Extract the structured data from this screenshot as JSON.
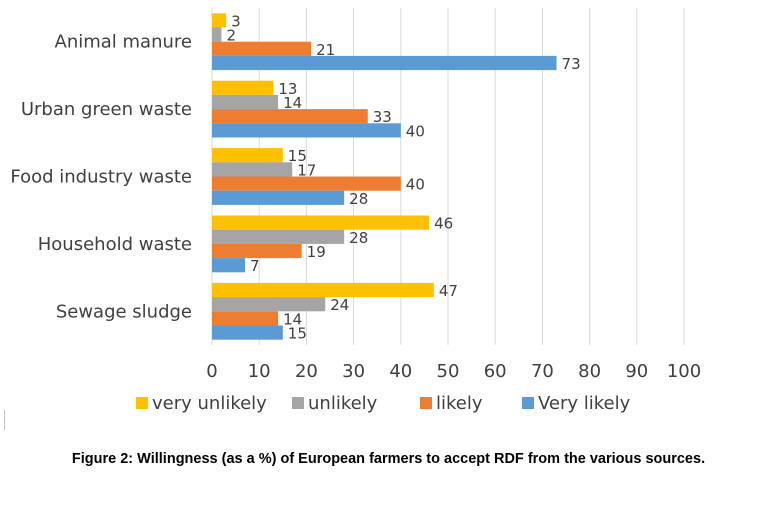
{
  "caption": "Figure 2: Willingness (as a %) of European farmers to accept RDF from the various sources.",
  "chart_data": {
    "type": "bar",
    "orientation": "horizontal",
    "categories": [
      "Animal manure",
      "Urban green waste",
      "Food industry waste",
      "Household waste",
      "Sewage sludge"
    ],
    "series": [
      {
        "name": "very unlikely",
        "color": "#FFC000",
        "values": [
          3,
          13,
          15,
          46,
          47
        ]
      },
      {
        "name": "unlikely",
        "color": "#A5A5A5",
        "values": [
          2,
          14,
          17,
          28,
          24
        ]
      },
      {
        "name": "likely",
        "color": "#ED7D31",
        "values": [
          21,
          33,
          40,
          19,
          14
        ]
      },
      {
        "name": "Very likely",
        "color": "#5B9BD5",
        "values": [
          73,
          40,
          28,
          7,
          15
        ]
      }
    ],
    "xlim": [
      0,
      100
    ],
    "xticks": [
      0,
      10,
      20,
      30,
      40,
      50,
      60,
      70,
      80,
      90,
      100
    ],
    "grid": true,
    "data_labels": true,
    "legend_position": "bottom"
  }
}
